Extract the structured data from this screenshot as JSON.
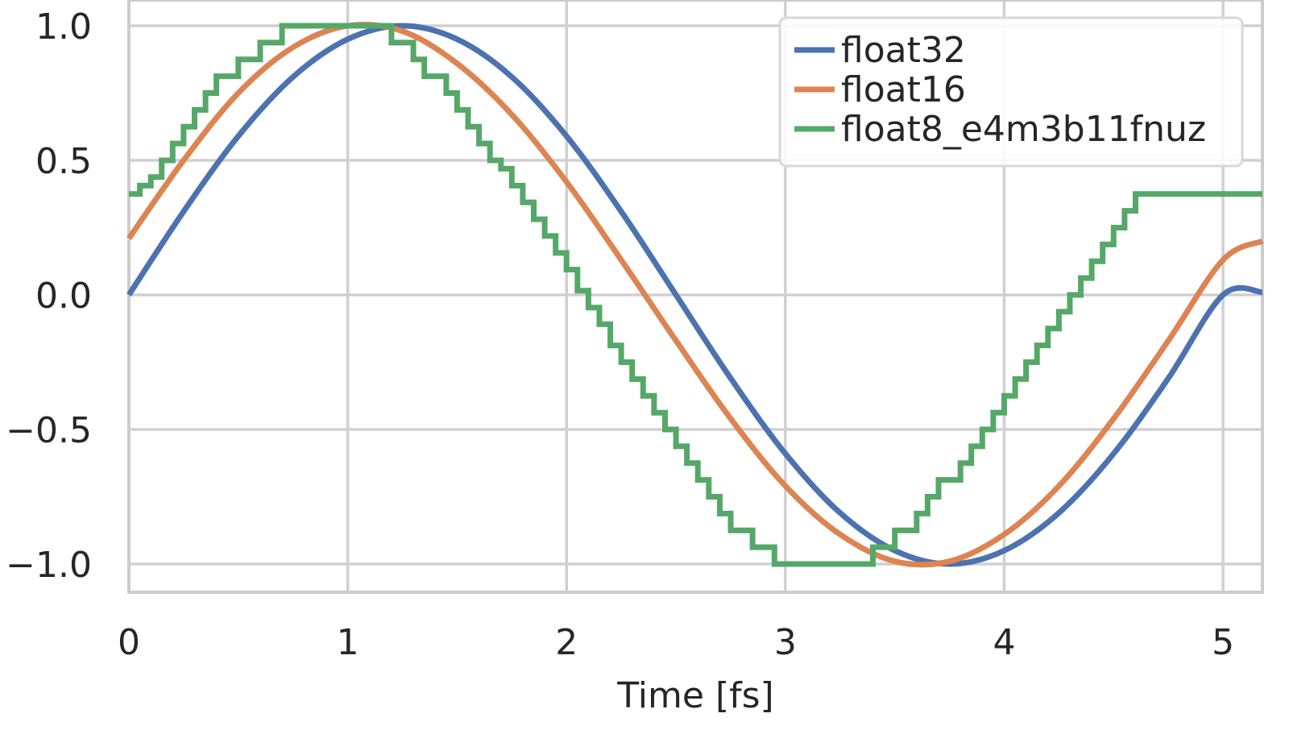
{
  "chart_data": {
    "type": "line",
    "xlabel": "Time [fs]",
    "ylabel": "",
    "xlim": [
      0,
      5.18
    ],
    "ylim": [
      -1.1,
      1.1
    ],
    "xticks": [
      0,
      1,
      2,
      3,
      4,
      5
    ],
    "xtick_labels": [
      "0",
      "1",
      "2",
      "3",
      "4",
      "5"
    ],
    "yticks": [
      1.0,
      0.5,
      0.0,
      -0.5,
      -1.0
    ],
    "ytick_labels": [
      "1.0",
      "0.5",
      "0.0",
      "−0.5",
      "−1.0"
    ],
    "grid": true,
    "legend_position": "top-right",
    "series": [
      {
        "name": "float32",
        "color": "#4c72b0",
        "style": "smooth",
        "x": [
          0,
          0.25,
          0.5,
          0.75,
          1.0,
          1.25,
          1.5,
          1.75,
          2.0,
          2.25,
          2.5,
          2.75,
          3.0,
          3.25,
          3.5,
          3.75,
          4.0,
          4.25,
          4.5,
          4.75,
          5.0,
          5.18
        ],
        "y": [
          0.0,
          0.31,
          0.59,
          0.81,
          0.95,
          1.0,
          0.95,
          0.81,
          0.59,
          0.31,
          0.0,
          -0.31,
          -0.59,
          -0.81,
          -0.95,
          -1.0,
          -0.95,
          -0.81,
          -0.59,
          -0.31,
          0.0,
          0.01
        ]
      },
      {
        "name": "float16",
        "color": "#dd8452",
        "style": "smooth",
        "x": [
          0,
          0.25,
          0.5,
          0.75,
          1.0,
          1.25,
          1.5,
          1.75,
          2.0,
          2.25,
          2.5,
          2.75,
          3.0,
          3.25,
          3.5,
          3.75,
          4.0,
          4.25,
          4.5,
          4.75,
          5.0,
          5.18
        ],
        "y": [
          0.21,
          0.5,
          0.75,
          0.92,
          1.0,
          0.98,
          0.86,
          0.67,
          0.42,
          0.13,
          -0.17,
          -0.46,
          -0.71,
          -0.89,
          -0.99,
          -0.99,
          -0.89,
          -0.71,
          -0.46,
          -0.17,
          0.13,
          0.2
        ]
      },
      {
        "name": "float8_e4m3b11fnuz",
        "color": "#55a868",
        "style": "step",
        "x": [
          0,
          0.05,
          0.1,
          0.15,
          0.2,
          0.25,
          0.3,
          0.35,
          0.4,
          0.45,
          0.5,
          0.55,
          0.6,
          0.65,
          0.7,
          0.75,
          0.8,
          0.85,
          0.9,
          0.95,
          1.0,
          1.05,
          1.1,
          1.15,
          1.2,
          1.25,
          1.3,
          1.35,
          1.4,
          1.45,
          1.5,
          1.55,
          1.6,
          1.65,
          1.7,
          1.75,
          1.8,
          1.85,
          1.9,
          1.95,
          2.0,
          2.05,
          2.1,
          2.15,
          2.2,
          2.25,
          2.3,
          2.35,
          2.4,
          2.45,
          2.5,
          2.55,
          2.6,
          2.65,
          2.7,
          2.75,
          2.8,
          2.85,
          2.9,
          2.95,
          3.0,
          3.05,
          3.1,
          3.15,
          3.2,
          3.25,
          3.3,
          3.35,
          3.4,
          3.45,
          3.5,
          3.55,
          3.6,
          3.65,
          3.7,
          3.75,
          3.8,
          3.85,
          3.9,
          3.95,
          4.0,
          4.05,
          4.1,
          4.15,
          4.2,
          4.25,
          4.3,
          4.35,
          4.4,
          4.45,
          4.5,
          4.55,
          4.6,
          4.65,
          4.7,
          4.75,
          4.8,
          4.85,
          4.9,
          4.95,
          5.0,
          5.05,
          5.1,
          5.15
        ],
        "y": [
          0.375,
          0.406,
          0.438,
          0.5,
          0.5625,
          0.625,
          0.6875,
          0.75,
          0.8125,
          0.8125,
          0.875,
          0.875,
          0.9375,
          0.9375,
          1.0,
          1.0,
          1.0,
          1.0,
          1.0,
          1.0,
          1.0,
          1.0,
          1.0,
          1.0,
          0.9375,
          0.9375,
          0.875,
          0.8125,
          0.8125,
          0.75,
          0.6875,
          0.625,
          0.5625,
          0.5,
          0.469,
          0.406,
          0.344,
          0.281,
          0.219,
          0.156,
          0.094,
          0.016,
          -0.047,
          -0.109,
          -0.188,
          -0.25,
          -0.313,
          -0.375,
          -0.438,
          -0.5,
          -0.5625,
          -0.625,
          -0.6875,
          -0.75,
          -0.8125,
          -0.875,
          -0.875,
          -0.9375,
          -0.9375,
          -1.0,
          -1.0,
          -1.0,
          -1.0,
          -1.0,
          -1.0,
          -1.0,
          -1.0,
          -1.0,
          -0.9375,
          -0.9375,
          -0.875,
          -0.875,
          -0.8125,
          -0.75,
          -0.6875,
          -0.6875,
          -0.625,
          -0.5625,
          -0.5,
          -0.4375,
          -0.375,
          -0.3125,
          -0.25,
          -0.1875,
          -0.125,
          -0.0625,
          0.0,
          0.0625,
          0.125,
          0.1875,
          0.25,
          0.3125,
          0.375,
          0.375,
          0.375,
          0.375,
          0.375,
          0.375,
          0.375,
          0.375,
          0.375,
          0.375,
          0.375,
          0.375
        ]
      }
    ]
  }
}
